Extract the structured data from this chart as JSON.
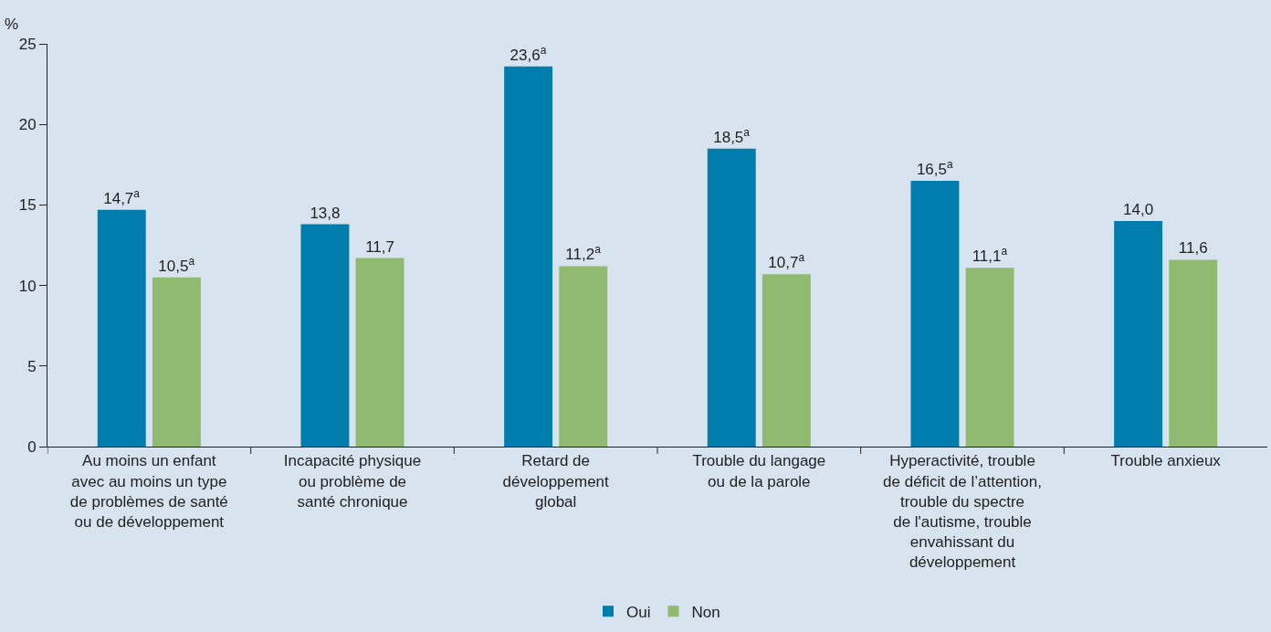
{
  "chart_data": {
    "type": "bar",
    "ylabel": "%",
    "categories": [
      "Au moins un enfant\navec au moins un type\nde problèmes de santé\nou de développement",
      "Incapacité physique\nou problème de\nsanté chronique",
      "Retard de\ndéveloppement\nglobal",
      "Trouble du langage\nou de la parole",
      "Hyperactivité, trouble\nde déficit de l’attention,\ntrouble du spectre\nde l'autisme, trouble\nenvahissant du\ndéveloppement",
      "Trouble anxieux"
    ],
    "series": [
      {
        "name": "Oui",
        "color": "#007dac",
        "values": [
          14.7,
          13.8,
          23.6,
          18.5,
          16.5,
          14.0
        ],
        "value_labels": [
          "14,7$^{a}$",
          "13,8",
          "23,6$^{a}$",
          "18,5$^{a}$",
          "16,5$^{a}$",
          "14,0"
        ]
      },
      {
        "name": "Non",
        "color": "#8fba6f",
        "values": [
          10.5,
          11.7,
          11.2,
          10.7,
          11.1,
          11.6
        ],
        "value_labels": [
          "10,5$^{a}$",
          "11,7",
          "11,2$^{a}$",
          "10,7$^{a}$",
          "11,1$^{a}$",
          "11,6"
        ]
      }
    ],
    "ylim": [
      0,
      25
    ],
    "yticks": [
      0,
      5,
      10,
      15,
      20,
      25
    ],
    "grid": false,
    "legend": "bottom"
  }
}
